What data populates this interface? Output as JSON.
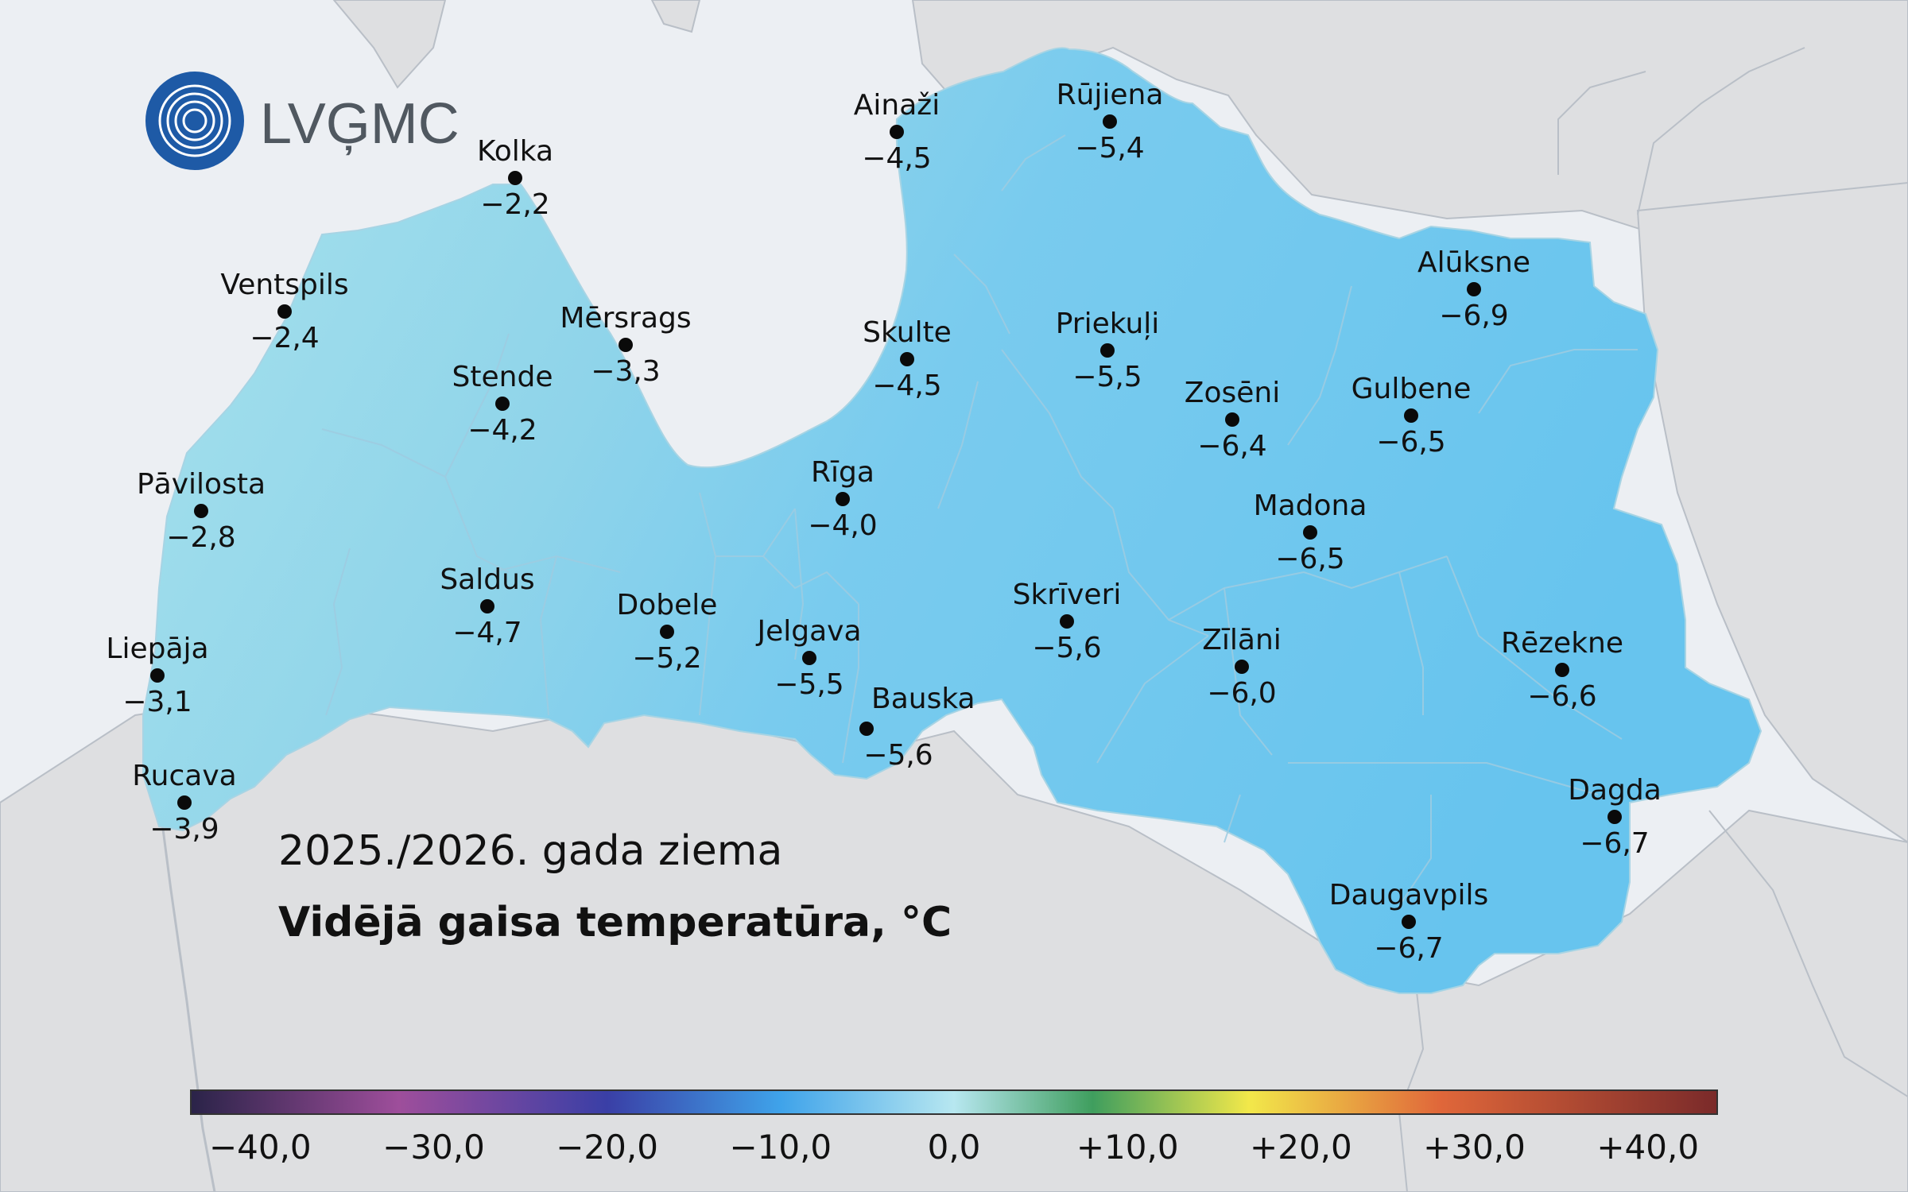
{
  "brand": {
    "name": "LVĢMC",
    "color": "#1e5aa6"
  },
  "title": {
    "season": "2025./2026. gada ziema",
    "variable": "Vidējā gaisa temperatūra, °C"
  },
  "colors": {
    "sea": "#eceff3",
    "neighbour_land": "#dedfe1",
    "border": "#b9bfc7",
    "marker": "#0a0a0a"
  },
  "stations": [
    {
      "name": "Kolka",
      "value": "−2,2",
      "temp": -2.2
    },
    {
      "name": "Ventspils",
      "value": "−2,4",
      "temp": -2.4
    },
    {
      "name": "Mērsrags",
      "value": "−3,3",
      "temp": -3.3
    },
    {
      "name": "Stende",
      "value": "−4,2",
      "temp": -4.2
    },
    {
      "name": "Pāvilosta",
      "value": "−2,8",
      "temp": -2.8
    },
    {
      "name": "Saldus",
      "value": "−4,7",
      "temp": -4.7
    },
    {
      "name": "Dobele",
      "value": "−5,2",
      "temp": -5.2
    },
    {
      "name": "Liepāja",
      "value": "−3,1",
      "temp": -3.1
    },
    {
      "name": "Rucava",
      "value": "−3,9",
      "temp": -3.9
    },
    {
      "name": "Jelgava",
      "value": "−5,5",
      "temp": -5.5
    },
    {
      "name": "Bauska",
      "value": "−5,6",
      "temp": -5.6
    },
    {
      "name": "Rīga",
      "value": "−4,0",
      "temp": -4.0
    },
    {
      "name": "Ainaži",
      "value": "−4,5",
      "temp": -4.5
    },
    {
      "name": "Rūjiena",
      "value": "−5,4",
      "temp": -5.4
    },
    {
      "name": "Skulte",
      "value": "−4,5",
      "temp": -4.5
    },
    {
      "name": "Priekuļi",
      "value": "−5,5",
      "temp": -5.5
    },
    {
      "name": "Skrīveri",
      "value": "−5,6",
      "temp": -5.6
    },
    {
      "name": "Zosēni",
      "value": "−6,4",
      "temp": -6.4
    },
    {
      "name": "Gulbene",
      "value": "−6,5",
      "temp": -6.5
    },
    {
      "name": "Alūksne",
      "value": "−6,9",
      "temp": -6.9
    },
    {
      "name": "Madona",
      "value": "−6,5",
      "temp": -6.5
    },
    {
      "name": "Zīlāni",
      "value": "−6,0",
      "temp": -6.0
    },
    {
      "name": "Rēzekne",
      "value": "−6,6",
      "temp": -6.6
    },
    {
      "name": "Dagda",
      "value": "−6,7",
      "temp": -6.7
    },
    {
      "name": "Daugavpils",
      "value": "−6,7",
      "temp": -6.7
    }
  ],
  "legend": {
    "min": -44,
    "max": 44,
    "tick_values": [
      -40,
      -30,
      -20,
      -10,
      0,
      10,
      20,
      30,
      40
    ],
    "tick_labels": [
      "−40,0",
      "−30,0",
      "−20,0",
      "−10,0",
      "0,0",
      "+10,0",
      "+20,0",
      "+30,0",
      "+40,0"
    ],
    "stops": [
      {
        "t": -44,
        "color": "#2a2348"
      },
      {
        "t": -32,
        "color": "#9e4e9b"
      },
      {
        "t": -20,
        "color": "#3a3fa6"
      },
      {
        "t": -10,
        "color": "#3fa3ea"
      },
      {
        "t": 0,
        "color": "#b7e7f0"
      },
      {
        "t": 8,
        "color": "#3f9e5e"
      },
      {
        "t": 17,
        "color": "#f2e84a"
      },
      {
        "t": 28,
        "color": "#e0673a"
      },
      {
        "t": 44,
        "color": "#7a2a2a"
      }
    ]
  }
}
